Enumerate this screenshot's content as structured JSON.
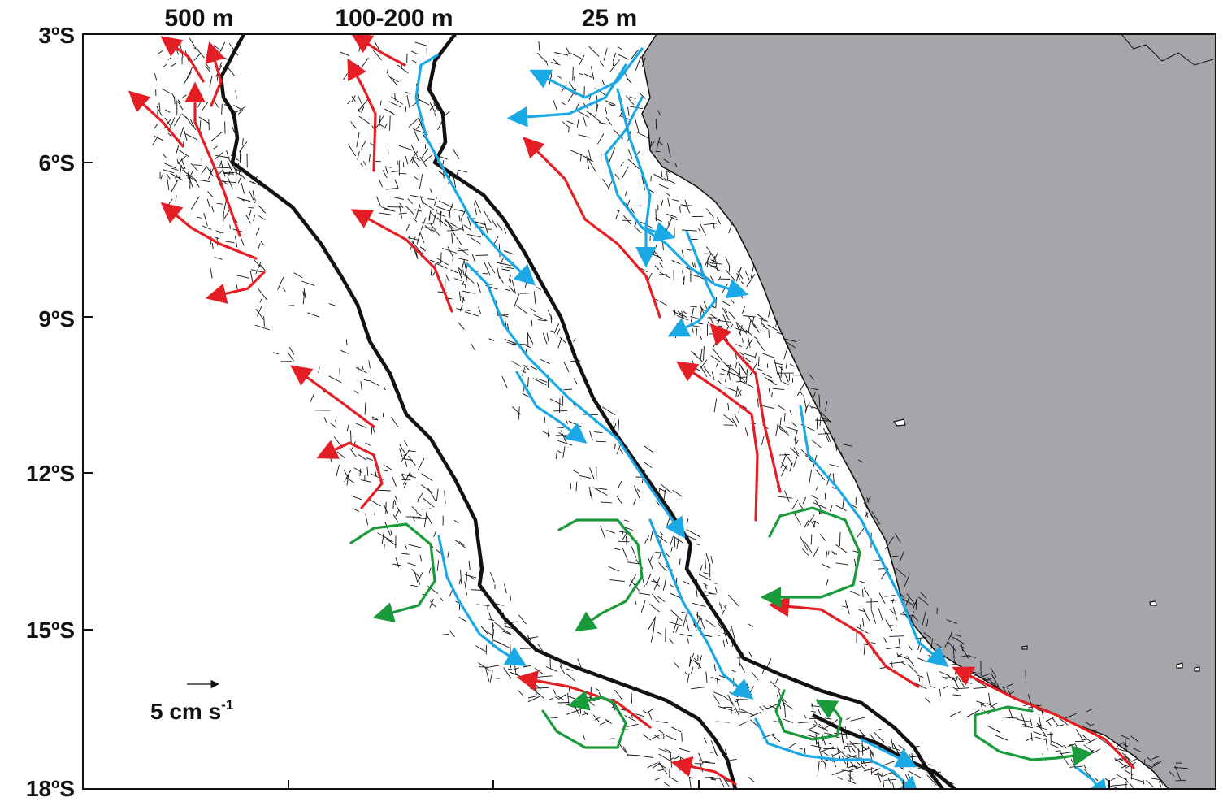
{
  "depth_labels": [
    "500 m",
    "100-200 m",
    "25 m"
  ],
  "latitude_labels": [
    "3ºS",
    "6ºS",
    "9ºS",
    "12ºS",
    "15ºS",
    "18ºS"
  ],
  "scale": {
    "value_unit": "5 cm s",
    "exponent": "-1"
  },
  "colors": {
    "land": "#a5a6aa",
    "coastline": "#111111",
    "red_current": "#e31e24",
    "blue_current": "#1ba9e6",
    "green_eddy": "#1a9a3a",
    "vectors": "#111111"
  }
}
